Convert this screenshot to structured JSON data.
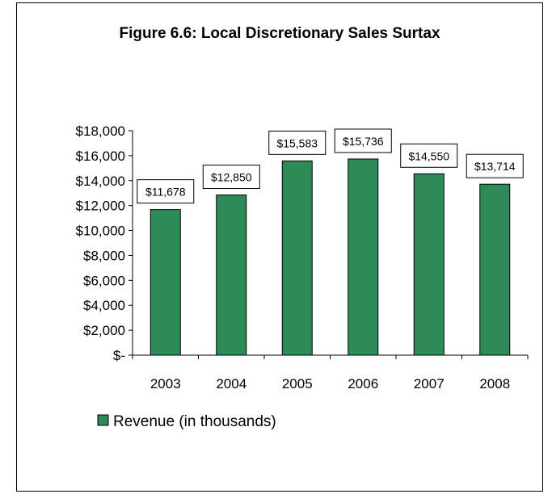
{
  "chart_data": {
    "type": "bar",
    "title": "Figure 6.6: Local Discretionary Sales Surtax",
    "categories": [
      "2003",
      "2004",
      "2005",
      "2006",
      "2007",
      "2008"
    ],
    "series": [
      {
        "name": "Revenue (in thousands)",
        "values": [
          11678,
          12850,
          15583,
          15736,
          14550,
          13714
        ],
        "color": "#2e8b57"
      }
    ],
    "data_labels": [
      "$11,678",
      "$12,850",
      "$15,583",
      "$15,736",
      "$14,550",
      "$13,714"
    ],
    "y_tick_labels": [
      "$-",
      "$2,000",
      "$4,000",
      "$6,000",
      "$8,000",
      "$10,000",
      "$12,000",
      "$14,000",
      "$16,000",
      "$18,000"
    ],
    "y_ticks": [
      0,
      2000,
      4000,
      6000,
      8000,
      10000,
      12000,
      14000,
      16000,
      18000
    ],
    "ylim": [
      0,
      18000
    ],
    "grid": false,
    "legend": "bottom-left",
    "xlabel": "",
    "ylabel": ""
  }
}
